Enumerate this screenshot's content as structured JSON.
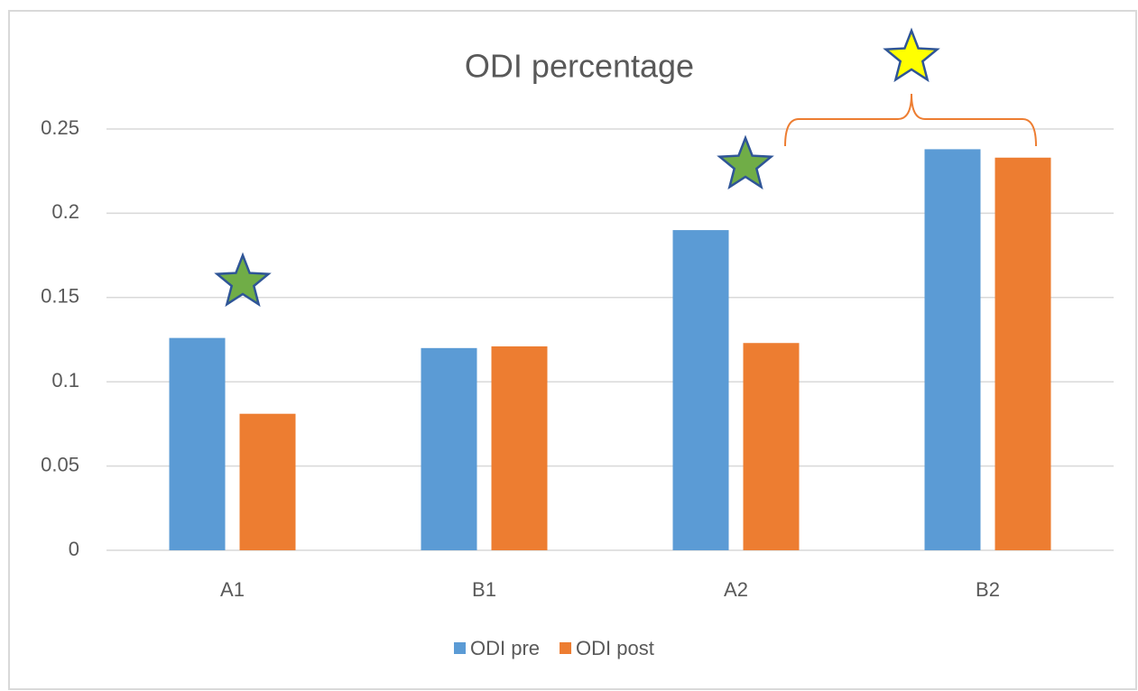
{
  "chart_data": {
    "type": "bar",
    "title": "ODI percentage",
    "categories": [
      "A1",
      "B1",
      "A2",
      "B2"
    ],
    "series": [
      {
        "name": "ODI pre",
        "color": "#5b9bd5",
        "values": [
          0.126,
          0.12,
          0.19,
          0.238
        ]
      },
      {
        "name": "ODI post",
        "color": "#ed7d31",
        "values": [
          0.081,
          0.121,
          0.123,
          0.233
        ]
      }
    ],
    "ylim": [
      0,
      0.25
    ],
    "yticks": [
      0,
      0.05,
      0.1,
      0.15,
      0.2,
      0.25
    ],
    "grid": true,
    "legend": "bottom"
  }
}
